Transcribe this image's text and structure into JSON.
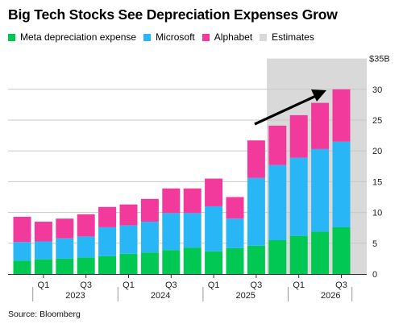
{
  "chart_data": {
    "type": "bar",
    "stacked": true,
    "title": "Big Tech Stocks See Depreciation Expenses Grow",
    "source": "Source: Bloomberg",
    "y_unit_label": "$35B",
    "ylim": [
      0,
      35
    ],
    "y_ticks": [
      0,
      5,
      10,
      15,
      20,
      25,
      30
    ],
    "grid": true,
    "legend_position": "top-left",
    "x_quarter_ticks": [
      "Q1",
      "Q3",
      "Q1",
      "Q3",
      "Q1",
      "Q3",
      "Q1",
      "Q3"
    ],
    "x_years": [
      "2023",
      "2024",
      "2025",
      "2026"
    ],
    "categories": [
      "2022 Q4",
      "2023 Q1",
      "2023 Q2",
      "2023 Q3",
      "2023 Q4",
      "2024 Q1",
      "2024 Q2",
      "2024 Q3",
      "2024 Q4",
      "2025 Q1",
      "2025 Q2",
      "2025 Q3",
      "2025 Q4",
      "2026 Q1",
      "2026 Q2",
      "2026 Q3"
    ],
    "series": [
      {
        "name": "Meta depreciation expense",
        "color": "#00c853",
        "values": [
          2.2,
          2.4,
          2.5,
          2.7,
          2.9,
          3.3,
          3.5,
          3.9,
          4.3,
          3.7,
          4.2,
          4.6,
          5.5,
          6.2,
          6.9,
          7.6
        ]
      },
      {
        "name": "Microsoft",
        "color": "#29b6f6",
        "values": [
          3.0,
          2.9,
          3.3,
          3.4,
          4.7,
          4.6,
          5.0,
          6.0,
          5.6,
          7.3,
          4.8,
          11.0,
          12.2,
          12.7,
          13.4,
          13.9
        ]
      },
      {
        "name": "Alphabet",
        "color": "#f23a9d",
        "values": [
          4.1,
          3.2,
          3.2,
          3.6,
          3.3,
          3.4,
          3.7,
          4.0,
          4.0,
          4.5,
          3.5,
          6.1,
          6.4,
          6.9,
          7.5,
          8.5
        ]
      }
    ],
    "estimates": {
      "name": "Estimates",
      "color": "#d9d9d9",
      "from_category": "2025 Q4"
    },
    "arrow_color": "#000000"
  }
}
